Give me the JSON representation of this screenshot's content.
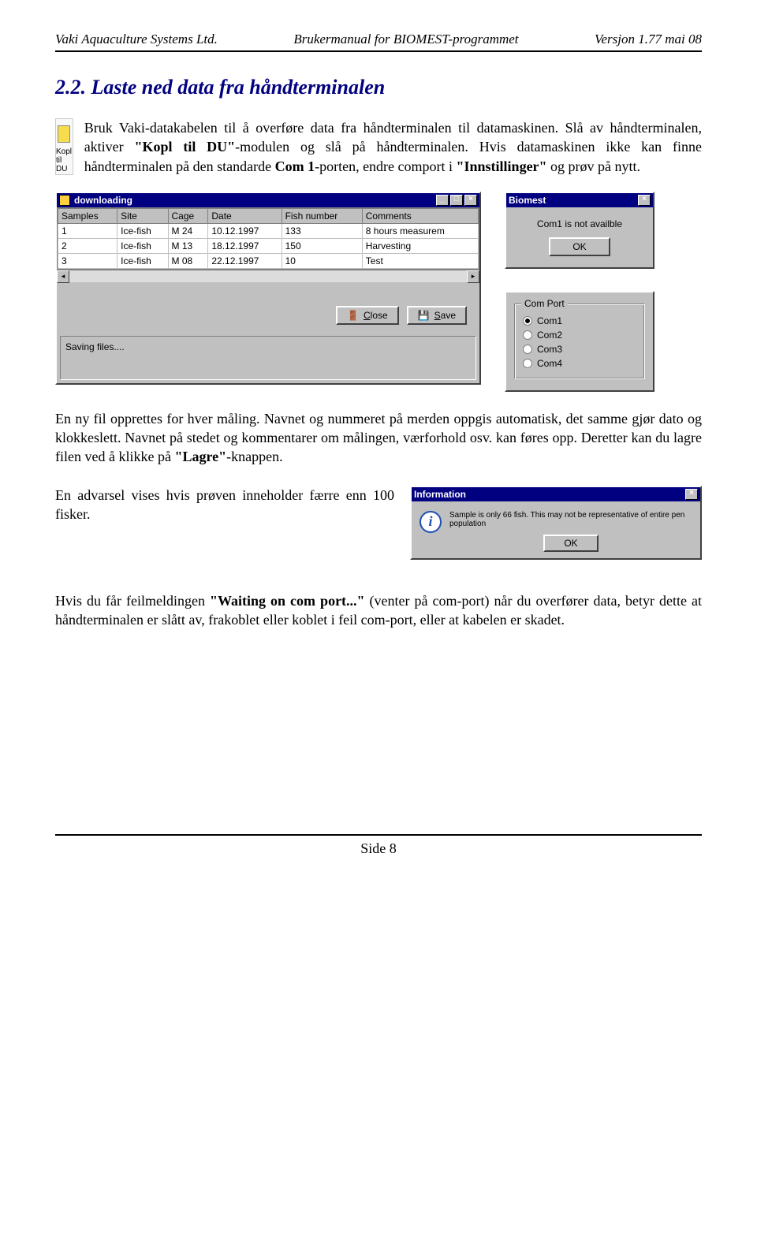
{
  "header": {
    "left": "Vaki Aquaculture Systems Ltd.",
    "center": "Brukermanual for BIOMEST-programmet",
    "right": "Versjon 1.77  mai 08"
  },
  "section_title": "2.2. Laste ned data fra håndterminalen",
  "kopl_icon_label": "Kopl til DU",
  "intro": {
    "p1a": "Bruk Vaki-datakabelen til å overføre data fra håndterminalen til datamaskinen. Slå av håndterminalen, aktiver ",
    "p1b": "\"Kopl til DU\"",
    "p1c": "-modulen og slå på håndterminalen. Hvis datamaskinen ikke kan finne håndterminalen på den standarde ",
    "p1d": "Com 1",
    "p1e": "-porten, endre comport i ",
    "p1f": "\"Innstillinger\"",
    "p1g": " og prøv på nytt."
  },
  "download_window": {
    "title": "downloading",
    "columns": [
      "Samples",
      "Site",
      "Cage",
      "Date",
      "Fish number",
      "Comments"
    ],
    "rows": [
      [
        "1",
        "Ice-fish",
        "M 24",
        "10.12.1997",
        "133",
        "8 hours measurem"
      ],
      [
        "2",
        "Ice-fish",
        "M 13",
        "18.12.1997",
        "150",
        "Harvesting"
      ],
      [
        "3",
        "Ice-fish",
        "M 08",
        "22.12.1997",
        "10",
        "Test"
      ]
    ],
    "close_label": "Close",
    "save_label": "Save",
    "status": "Saving files...."
  },
  "biomest_dialog": {
    "title": "Biomest",
    "message": "Com1 is not availble",
    "ok": "OK"
  },
  "comport_group": {
    "legend": "Com Port",
    "options": [
      "Com1",
      "Com2",
      "Com3",
      "Com4"
    ],
    "selected_index": 0
  },
  "para2a": "En ny fil opprettes for hver måling. Navnet og nummeret på merden oppgis automatisk, det samme gjør dato og klokkeslett. Navnet på stedet og kommentarer om målingen, værforhold osv. kan føres opp. Deretter kan du lagre filen ved å klikke på ",
  "para2b": "\"Lagre\"",
  "para2c": "-knappen.",
  "adv_text": "En advarsel vises hvis prøven inneholder færre enn 100 fisker.",
  "info_dialog": {
    "title": "Information",
    "message": "Sample is only 66 fish. This may not be representative of entire pen population",
    "ok": "OK"
  },
  "para3a": "Hvis du får feilmeldingen ",
  "para3b": "\"Waiting on com port...\"",
  "para3c": " (venter på com-port) når du overfører data, betyr dette at håndterminalen er slått av, frakoblet eller koblet i feil com-port, eller at kabelen er skadet.",
  "footer": "Side 8",
  "colors": {
    "title": "#000080",
    "win95_bg": "#c0c0c0",
    "titlebar_bg": "#000080"
  }
}
